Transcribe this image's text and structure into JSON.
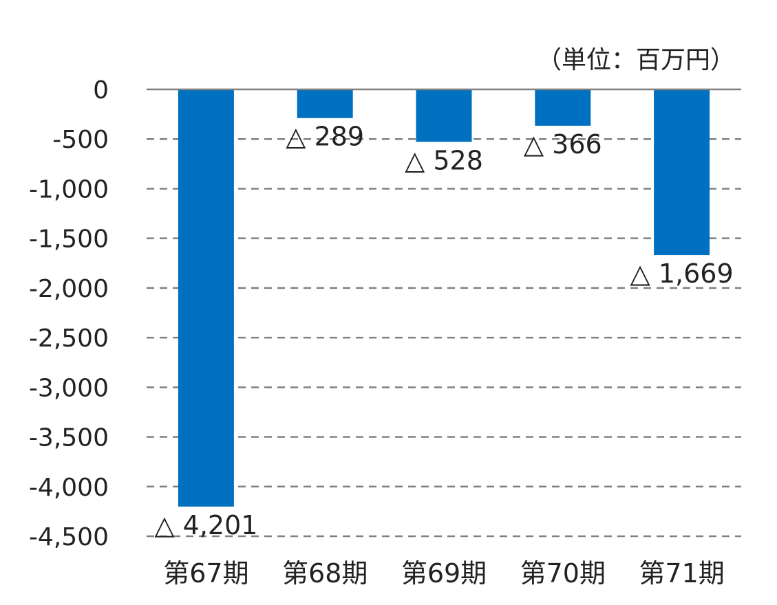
{
  "chart_data": {
    "type": "bar",
    "unit_label": "（単位：百万円）",
    "categories": [
      "第67期",
      "第68期",
      "第69期",
      "第70期",
      "第71期"
    ],
    "values": [
      -4201,
      -289,
      -528,
      -366,
      -1669
    ],
    "data_labels": [
      "△ 4,201",
      "△ 289",
      "△ 528",
      "△ 366",
      "△ 1,669"
    ],
    "yticks": [
      0,
      -500,
      -1000,
      -1500,
      -2000,
      -2500,
      -3000,
      -3500,
      -4000,
      -4500
    ],
    "ytick_labels": [
      "0",
      "-500",
      "-1,000",
      "-1,500",
      "-2,000",
      "-2,500",
      "-3,000",
      "-3,500",
      "-4,000",
      "-4,500"
    ],
    "ylim": [
      -4500,
      0
    ],
    "grid": true,
    "bar_color": "#0070C0",
    "grid_color": "#808080",
    "title": "",
    "xlabel": "",
    "ylabel": ""
  }
}
